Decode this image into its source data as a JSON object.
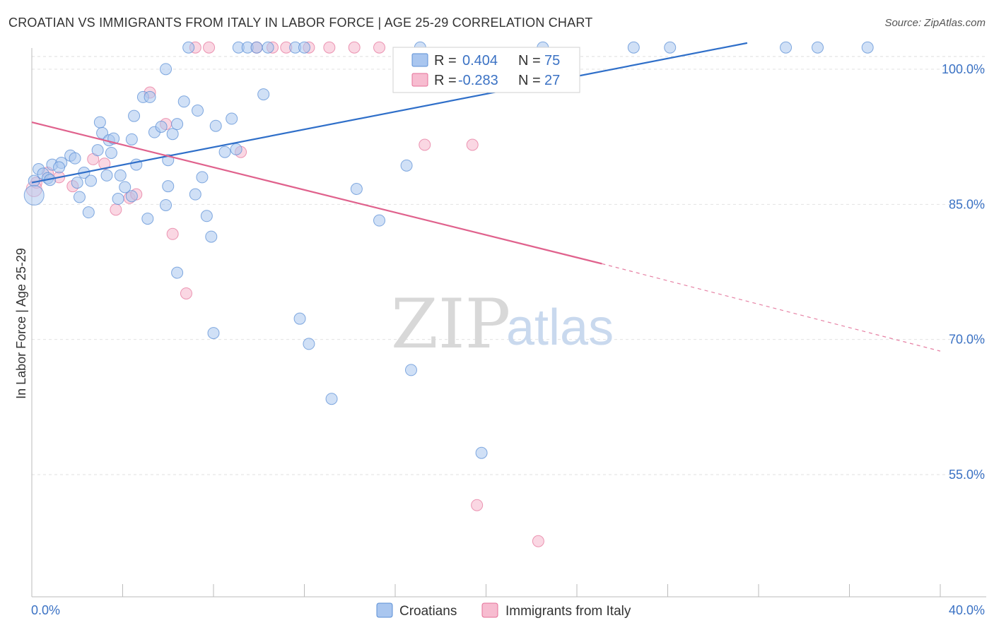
{
  "header": {
    "title": "CROATIAN VS IMMIGRANTS FROM ITALY IN LABOR FORCE | AGE 25-29 CORRELATION CHART",
    "source": "Source: ZipAtlas.com"
  },
  "watermark": {
    "zip": "ZIP",
    "atlas": "atlas"
  },
  "legend_box": {
    "rows": [
      {
        "r_label": "R =",
        "r_value": "0.404",
        "n_label": "N =",
        "n_value": "75",
        "color": "#a9c6ef"
      },
      {
        "r_label": "R =",
        "r_value": "-0.283",
        "n_label": "N =",
        "n_value": "27",
        "color": "#f7bcd0"
      }
    ]
  },
  "bottom_legend": {
    "items": [
      {
        "label": "Croatians",
        "color": "#a9c6ef"
      },
      {
        "label": "Immigrants from Italy",
        "color": "#f7bcd0"
      }
    ]
  },
  "chart_data": {
    "type": "scatter",
    "title": "CROATIAN VS IMMIGRANTS FROM ITALY IN LABOR FORCE | AGE 25-29 CORRELATION CHART",
    "xlabel": "",
    "ylabel": "In Labor Force | Age 25-29",
    "xlim": [
      0,
      40
    ],
    "ylim": [
      40,
      101.5
    ],
    "x_tick_labels": [
      "0.0%",
      "40.0%"
    ],
    "y_ticks": [
      55,
      70,
      85,
      100
    ],
    "y_tick_labels": [
      "55.0%",
      "70.0%",
      "85.0%",
      "100.0%"
    ],
    "grid": true,
    "legend_position": "top-center",
    "colors": {
      "croatians": "#5b8fd6",
      "croatians_fill": "#a9c6ef",
      "italy": "#e46f97",
      "italy_fill": "#f7bcd0",
      "blue_line": "#2f6fc9",
      "pink_line": "#e0628d"
    },
    "series": [
      {
        "name": "Croatians",
        "r": 0.404,
        "n": 75,
        "trend": {
          "x": [
            0,
            31.5
          ],
          "y": [
            86.0,
            101.5
          ]
        },
        "points": [
          [
            0.1,
            86.2
          ],
          [
            0.3,
            87.5
          ],
          [
            0.5,
            87.0
          ],
          [
            0.7,
            86.5
          ],
          [
            0.9,
            88.0
          ],
          [
            1.3,
            88.2
          ],
          [
            1.7,
            89.0
          ],
          [
            1.9,
            88.7
          ],
          [
            2.3,
            87.1
          ],
          [
            2.6,
            86.2
          ],
          [
            2.1,
            84.4
          ],
          [
            2.5,
            82.7
          ],
          [
            2.9,
            89.6
          ],
          [
            3.0,
            92.7
          ],
          [
            3.1,
            91.5
          ],
          [
            3.4,
            90.7
          ],
          [
            3.5,
            89.3
          ],
          [
            3.6,
            90.9
          ],
          [
            3.9,
            86.8
          ],
          [
            4.1,
            85.5
          ],
          [
            4.4,
            90.8
          ],
          [
            4.5,
            93.4
          ],
          [
            4.9,
            95.5
          ],
          [
            5.2,
            95.5
          ],
          [
            5.4,
            91.6
          ],
          [
            5.7,
            92.2
          ],
          [
            5.9,
            98.6
          ],
          [
            6.0,
            88.5
          ],
          [
            6.2,
            91.4
          ],
          [
            6.4,
            92.5
          ],
          [
            6.7,
            95.0
          ],
          [
            6.9,
            101.0
          ],
          [
            7.3,
            94.0
          ],
          [
            7.5,
            86.6
          ],
          [
            7.7,
            82.3
          ],
          [
            7.9,
            80.0
          ],
          [
            8.1,
            92.3
          ],
          [
            8.5,
            89.4
          ],
          [
            8.8,
            93.1
          ],
          [
            9.1,
            101.0
          ],
          [
            9.5,
            101.0
          ],
          [
            9.9,
            101.0
          ],
          [
            10.2,
            95.8
          ],
          [
            10.4,
            101.0
          ],
          [
            11.6,
            101.0
          ],
          [
            12.0,
            101.0
          ],
          [
            14.3,
            85.3
          ],
          [
            15.3,
            81.8
          ],
          [
            16.5,
            87.9
          ],
          [
            17.1,
            101.0
          ],
          [
            22.5,
            101.0
          ],
          [
            26.5,
            101.0
          ],
          [
            28.1,
            101.0
          ],
          [
            33.2,
            101.0
          ],
          [
            34.6,
            101.0
          ],
          [
            36.8,
            101.0
          ],
          [
            8.0,
            69.3
          ],
          [
            12.2,
            68.1
          ],
          [
            11.8,
            70.9
          ],
          [
            16.7,
            65.2
          ],
          [
            13.2,
            62.0
          ],
          [
            19.8,
            56.0
          ],
          [
            5.1,
            82.0
          ],
          [
            6.4,
            76.0
          ],
          [
            4.6,
            88.0
          ],
          [
            3.3,
            86.8
          ],
          [
            2.0,
            86.0
          ],
          [
            1.2,
            87.7
          ],
          [
            0.8,
            86.3
          ],
          [
            5.9,
            83.5
          ],
          [
            7.2,
            84.7
          ],
          [
            4.4,
            84.5
          ],
          [
            3.8,
            84.2
          ],
          [
            6.0,
            85.6
          ],
          [
            9.0,
            89.7
          ]
        ]
      },
      {
        "name": "Immigrants from Italy",
        "r": -0.283,
        "n": 27,
        "trend": {
          "x": [
            0,
            25.1
          ],
          "y": [
            92.7,
            77.0
          ],
          "dashed_to": {
            "x": 40,
            "y": 67.3
          }
        },
        "points": [
          [
            0.2,
            86.0
          ],
          [
            0.7,
            87.1
          ],
          [
            1.2,
            86.6
          ],
          [
            1.8,
            85.6
          ],
          [
            2.7,
            88.6
          ],
          [
            3.2,
            88.1
          ],
          [
            3.7,
            83.0
          ],
          [
            4.3,
            84.3
          ],
          [
            4.6,
            84.7
          ],
          [
            5.2,
            96.0
          ],
          [
            5.9,
            92.5
          ],
          [
            6.2,
            80.3
          ],
          [
            6.8,
            73.7
          ],
          [
            7.2,
            101.0
          ],
          [
            7.8,
            101.0
          ],
          [
            9.2,
            89.4
          ],
          [
            9.9,
            101.0
          ],
          [
            10.6,
            101.0
          ],
          [
            11.2,
            101.0
          ],
          [
            12.2,
            101.0
          ],
          [
            13.1,
            101.0
          ],
          [
            14.2,
            101.0
          ],
          [
            15.3,
            101.0
          ],
          [
            17.3,
            90.2
          ],
          [
            19.4,
            90.2
          ],
          [
            19.6,
            50.2
          ],
          [
            22.3,
            46.2
          ]
        ]
      }
    ]
  }
}
